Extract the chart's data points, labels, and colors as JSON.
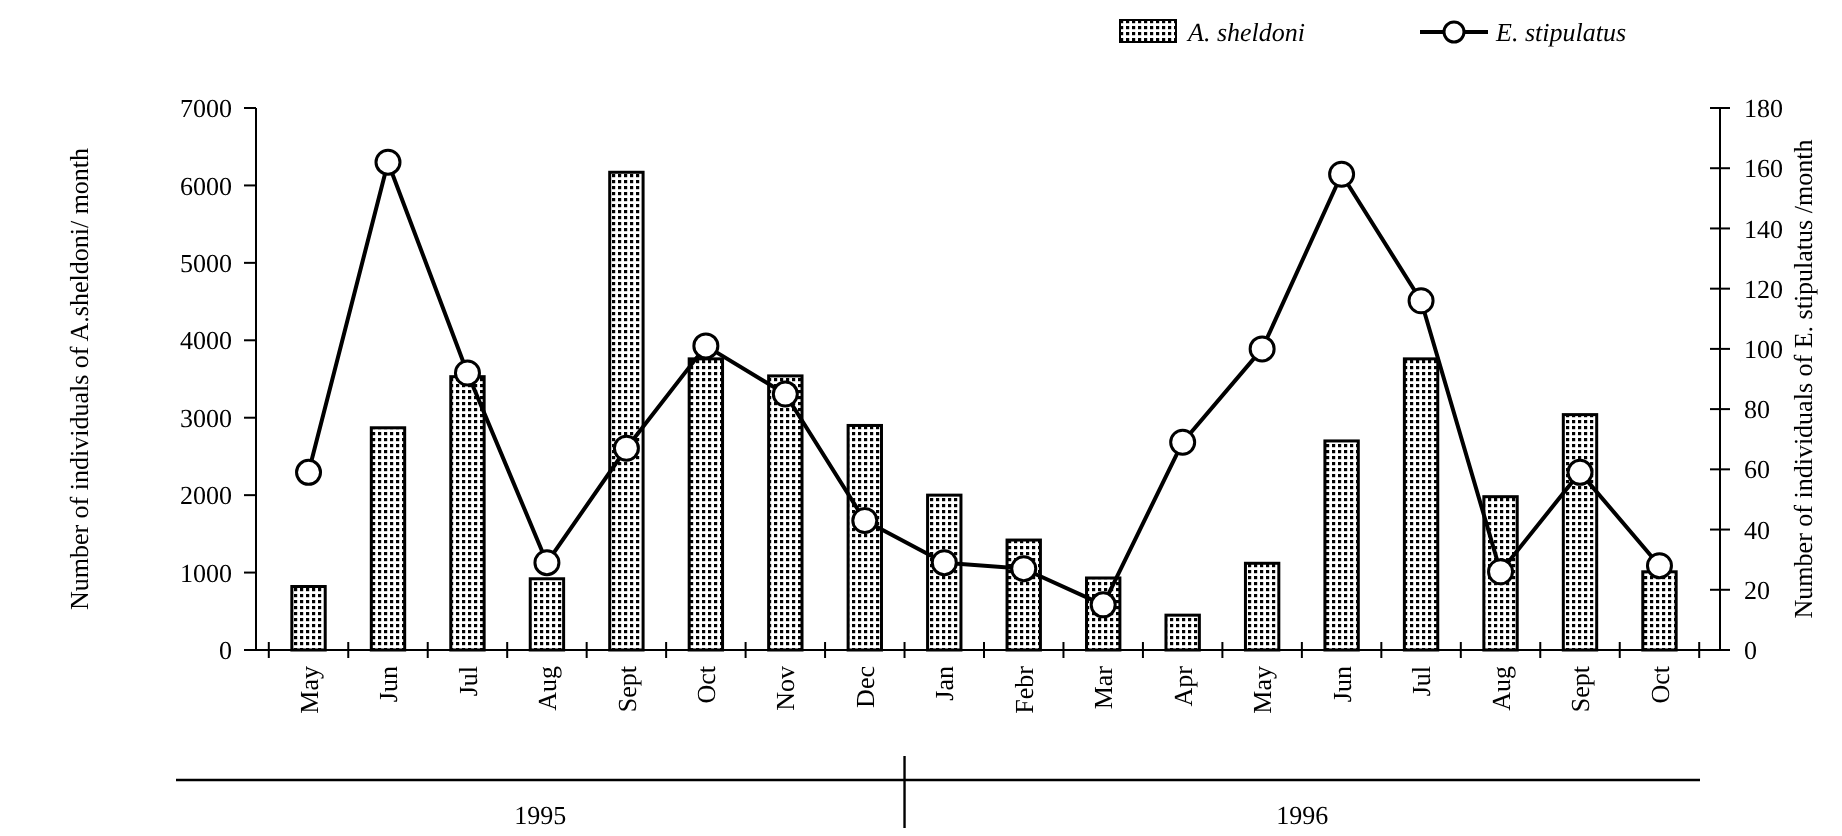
{
  "chart_data": {
    "type": "bar",
    "categories": [
      "May",
      "Jun",
      "Jul",
      "Aug",
      "Sept",
      "Oct",
      "Nov",
      "Dec",
      "Jan",
      "Febr",
      "Mar",
      "Apr",
      "May",
      "Jun",
      "Jul",
      "Aug",
      "Sept",
      "Oct"
    ],
    "ylabel": "Number of individuals of A.sheldoni/ month",
    "y2label": "Number of individuals of E. stipulatus /month",
    "ylim": [
      0,
      7000
    ],
    "yticks": [
      0,
      1000,
      2000,
      3000,
      4000,
      5000,
      6000,
      7000
    ],
    "y2lim": [
      0,
      180
    ],
    "y2ticks": [
      0,
      20,
      40,
      60,
      80,
      100,
      120,
      140,
      160,
      180
    ],
    "series": [
      {
        "name": "A. sheldoni",
        "color": "#000000",
        "values": [
          820,
          2870,
          3530,
          920,
          6170,
          3760,
          3540,
          2900,
          2000,
          1420,
          930,
          450,
          1120,
          2700,
          3760,
          1980,
          3040,
          1010
        ]
      },
      {
        "name": "E. stipulatus",
        "type": "line",
        "axis": "y2",
        "color": "#000000",
        "marker": "circle",
        "values": [
          59,
          162,
          92,
          29,
          67,
          101,
          85,
          43,
          29,
          27,
          15,
          69,
          100,
          158,
          116,
          26,
          59,
          28
        ]
      }
    ],
    "annotations": [
      "1995",
      "1996"
    ],
    "legend": "top right",
    "grid": false
  }
}
